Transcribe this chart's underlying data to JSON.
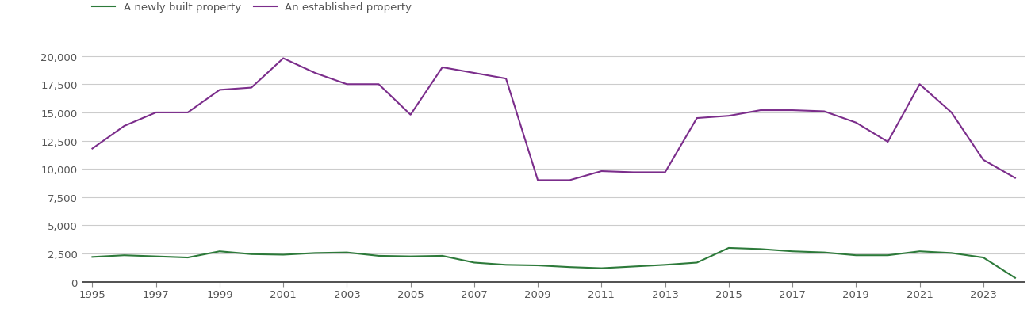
{
  "years": [
    1995,
    1996,
    1997,
    1998,
    1999,
    2000,
    2001,
    2002,
    2003,
    2004,
    2005,
    2006,
    2007,
    2008,
    2009,
    2010,
    2011,
    2012,
    2013,
    2014,
    2015,
    2016,
    2017,
    2018,
    2019,
    2020,
    2021,
    2022,
    2023,
    2024
  ],
  "new_homes": [
    2200,
    2350,
    2250,
    2150,
    2700,
    2450,
    2400,
    2550,
    2600,
    2300,
    2250,
    2300,
    1700,
    1500,
    1450,
    1300,
    1200,
    1350,
    1500,
    1700,
    3000,
    2900,
    2700,
    2600,
    2350,
    2350,
    2700,
    2550,
    2150,
    350
  ],
  "established_homes": [
    11800,
    13800,
    15000,
    15000,
    17000,
    17200,
    19800,
    18500,
    17500,
    17500,
    14800,
    19000,
    18500,
    18000,
    9000,
    9000,
    9800,
    9700,
    9700,
    14500,
    14700,
    15200,
    15200,
    15100,
    14100,
    12400,
    17500,
    15000,
    10800,
    9200
  ],
  "new_color": "#2d7a3a",
  "established_color": "#7b2d8b",
  "new_label": "A newly built property",
  "established_label": "An established property",
  "ylim": [
    0,
    21000
  ],
  "yticks": [
    0,
    2500,
    5000,
    7500,
    10000,
    12500,
    15000,
    17500,
    20000
  ],
  "xtick_years": [
    1995,
    1997,
    1999,
    2001,
    2003,
    2005,
    2007,
    2009,
    2011,
    2013,
    2015,
    2017,
    2019,
    2021,
    2023
  ],
  "background_color": "#ffffff",
  "grid_color": "#cccccc",
  "line_width": 1.5,
  "tick_label_color": "#555555",
  "tick_label_fontsize": 9.5
}
